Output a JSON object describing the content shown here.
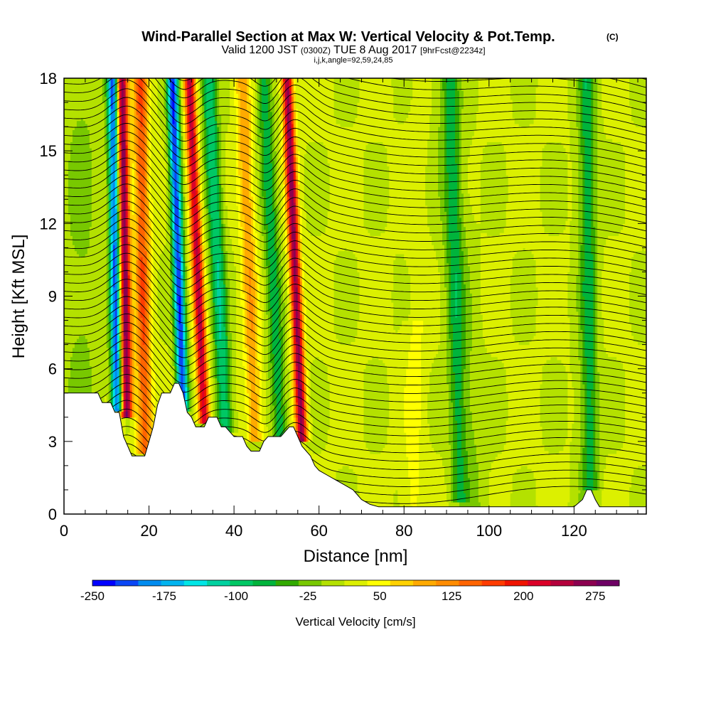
{
  "chart_data": {
    "type": "heatmap",
    "title_main": "Wind-Parallel Section at Max W: Vertical Velocity & Pot.Temp.",
    "title_mark": "(C)",
    "subtitle_prefix": "Valid 1200 JST",
    "subtitle_utc": "(0300Z)",
    "subtitle_date": "TUE 8 Aug 2017",
    "subtitle_fcst": "[9hrFcst@2234z]",
    "grid_info": "i,j,k,angle=92,59,24,85",
    "xlabel": "Distance [nm]",
    "ylabel": "Height [Kft MSL]",
    "xlim": [
      0,
      137
    ],
    "ylim": [
      0,
      18
    ],
    "xticks": [
      "0",
      "20",
      "40",
      "60",
      "80",
      "100",
      "120"
    ],
    "yticks": [
      "0",
      "3",
      "6",
      "9",
      "12",
      "15",
      "18"
    ],
    "colorbar": {
      "label": "Vertical Velocity [cm/s]",
      "ticks": [
        "-250",
        "-175",
        "-100",
        "-25",
        "50",
        "125",
        "200",
        "275"
      ],
      "min": -250,
      "max": 300,
      "colors": [
        "#0000ff",
        "#0a46f5",
        "#008cf0",
        "#00b4f0",
        "#00e6e6",
        "#00d2a0",
        "#00c864",
        "#00b43c",
        "#32aa00",
        "#78c800",
        "#b4e100",
        "#dcf000",
        "#ffff00",
        "#ffd200",
        "#ffaa00",
        "#ff8c00",
        "#ff6400",
        "#ff3c00",
        "#f01400",
        "#dc0028",
        "#b4003c",
        "#8c0050",
        "#6e0064"
      ]
    },
    "terrain_kft": [
      [
        0,
        5
      ],
      [
        4,
        5
      ],
      [
        8,
        5
      ],
      [
        9,
        4.6
      ],
      [
        11,
        4.6
      ],
      [
        12,
        4.2
      ],
      [
        13,
        4.2
      ],
      [
        14,
        3.2
      ],
      [
        15,
        2.8
      ],
      [
        16,
        2.4
      ],
      [
        19,
        2.4
      ],
      [
        20,
        3.0
      ],
      [
        21,
        3.6
      ],
      [
        22,
        4.5
      ],
      [
        23,
        5.0
      ],
      [
        25,
        5.0
      ],
      [
        26,
        5.4
      ],
      [
        27,
        5.4
      ],
      [
        28,
        5.0
      ],
      [
        29,
        4.2
      ],
      [
        30,
        4.0
      ],
      [
        31,
        3.6
      ],
      [
        33,
        3.6
      ],
      [
        34,
        4.0
      ],
      [
        36,
        4.0
      ],
      [
        37,
        3.6
      ],
      [
        38,
        3.6
      ],
      [
        39,
        3.4
      ],
      [
        40,
        3.2
      ],
      [
        42,
        3.2
      ],
      [
        43,
        2.8
      ],
      [
        44,
        2.6
      ],
      [
        46,
        2.6
      ],
      [
        47,
        3.0
      ],
      [
        48,
        3.2
      ],
      [
        51,
        3.2
      ],
      [
        52,
        3.4
      ],
      [
        53,
        3.6
      ],
      [
        54,
        3.6
      ],
      [
        55,
        3.2
      ],
      [
        56,
        2.8
      ],
      [
        57,
        2.6
      ],
      [
        58,
        2.4
      ],
      [
        59,
        2.0
      ],
      [
        60,
        1.8
      ],
      [
        62,
        1.6
      ],
      [
        64,
        1.4
      ],
      [
        66,
        1.2
      ],
      [
        68,
        1.0
      ],
      [
        70,
        0.6
      ],
      [
        72,
        0.4
      ],
      [
        74,
        0.3
      ],
      [
        100,
        0.3
      ],
      [
        110,
        0.3
      ],
      [
        120,
        0.3
      ],
      [
        122,
        0.6
      ],
      [
        123,
        1.0
      ],
      [
        124,
        1.0
      ],
      [
        125,
        0.6
      ],
      [
        126,
        0.3
      ],
      [
        137,
        0.3
      ]
    ],
    "updraft_bands": [
      {
        "x_base": 14.8,
        "x_top": 13.6,
        "peak_cms": 270,
        "z_bottom": 4.0
      },
      {
        "x_base": 19.0,
        "x_top": 18.0,
        "peak_cms": 140,
        "z_bottom": 2.5
      },
      {
        "x_base": 33.0,
        "x_top": 29.5,
        "peak_cms": 220,
        "z_bottom": 3.8
      },
      {
        "x_base": 56.0,
        "x_top": 52.5,
        "peak_cms": 250,
        "z_bottom": 3.0
      },
      {
        "x_base": 45.0,
        "x_top": 42.0,
        "peak_cms": 90,
        "z_bottom": 3.0
      }
    ],
    "downdraft_bands": [
      {
        "x_base": 12.5,
        "x_top": 11.5,
        "peak_cms": -230,
        "z_bottom": 4.2
      },
      {
        "x_base": 28.0,
        "x_top": 25.5,
        "peak_cms": -240,
        "z_bottom": 4.2
      },
      {
        "x_base": 38.0,
        "x_top": 34.0,
        "peak_cms": -120,
        "z_bottom": 3.4
      },
      {
        "x_base": 51.0,
        "x_top": 47.0,
        "peak_cms": -90,
        "z_bottom": 3.0
      },
      {
        "x_base": 93.0,
        "x_top": 91.0,
        "peak_cms": -60,
        "z_bottom": 0.5
      },
      {
        "x_base": 124.0,
        "x_top": 123.0,
        "peak_cms": -60,
        "z_bottom": 1.0
      }
    ]
  }
}
